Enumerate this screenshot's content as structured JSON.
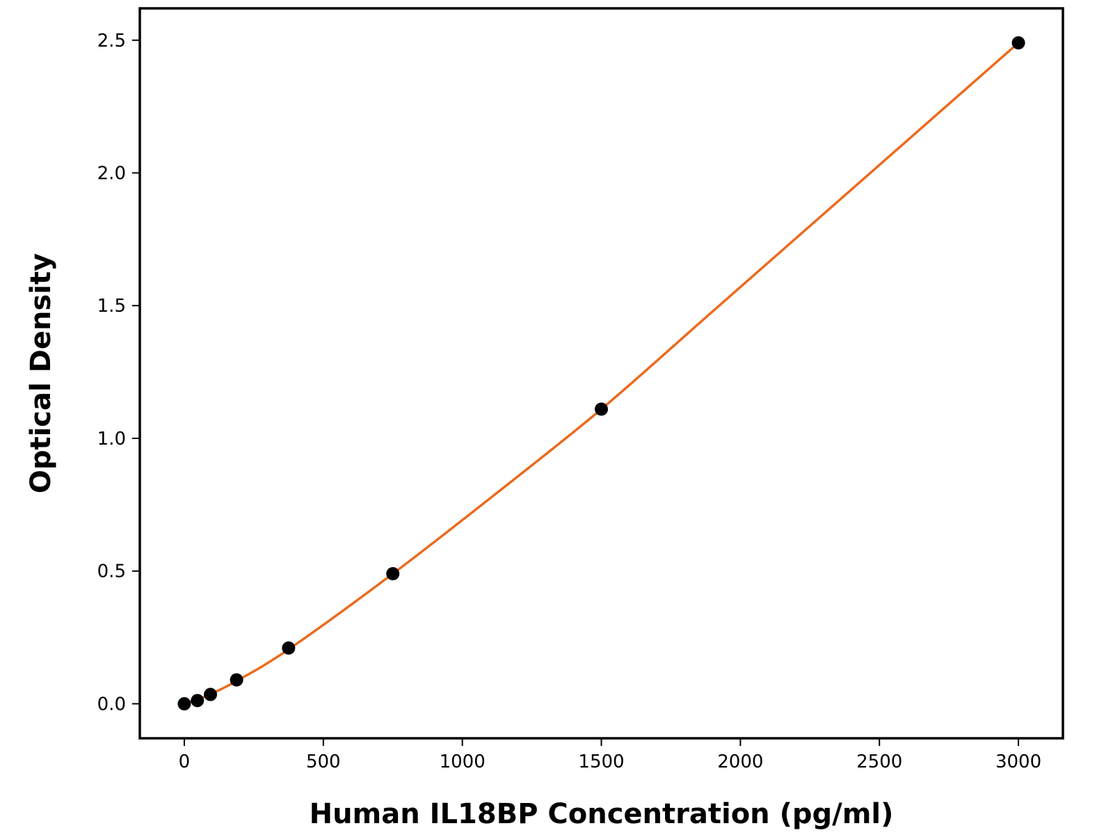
{
  "chart_data": {
    "type": "scatter",
    "title": "",
    "xlabel": "Human IL18BP Concentration (pg/ml)",
    "ylabel": "Optical Density",
    "xlim": [
      -160,
      3160
    ],
    "ylim": [
      -0.13,
      2.62
    ],
    "x_ticks": [
      0,
      500,
      1000,
      1500,
      2000,
      2500,
      3000
    ],
    "x_tick_labels": [
      "0",
      "500",
      "1000",
      "1500",
      "2000",
      "2500",
      "3000"
    ],
    "y_ticks": [
      0.0,
      0.5,
      1.0,
      1.5,
      2.0,
      2.5
    ],
    "y_tick_labels": [
      "0.0",
      "0.5",
      "1.0",
      "1.5",
      "2.0",
      "2.5"
    ],
    "grid": false,
    "legend": "none",
    "series": [
      {
        "kind": "points",
        "color": "#000000",
        "x": [
          0,
          47,
          94,
          188,
          375,
          750,
          1500,
          3000
        ],
        "y": [
          0.0,
          0.012,
          0.035,
          0.09,
          0.21,
          0.49,
          1.11,
          2.49
        ]
      },
      {
        "kind": "fit-curve",
        "color": "#ec6a1c",
        "x": [
          0,
          47,
          94,
          188,
          375,
          750,
          1125,
          1500,
          1875,
          2250,
          2625,
          3000
        ],
        "y": [
          0.0,
          0.016,
          0.036,
          0.086,
          0.205,
          0.49,
          0.795,
          1.11,
          1.455,
          1.8,
          2.145,
          2.49
        ]
      }
    ]
  }
}
